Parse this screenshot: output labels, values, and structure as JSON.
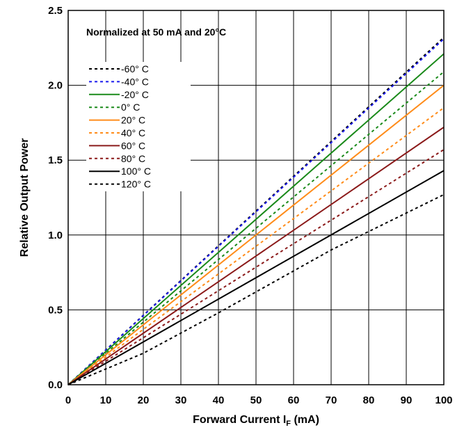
{
  "chart_data": {
    "type": "line",
    "xlabel": "Forward Current I",
    "xlabel_sub": "F",
    "xlabel_unit": " (mA)",
    "ylabel": "Relative Output Power",
    "annotation": "Normalized at 50 mA and 20°C",
    "xlim": [
      0,
      100
    ],
    "ylim": [
      0,
      2.5
    ],
    "x_ticks": [
      "0",
      "10",
      "20",
      "30",
      "40",
      "50",
      "60",
      "70",
      "80",
      "90",
      "100"
    ],
    "y_ticks": [
      "0.0",
      "0.5",
      "1.0",
      "1.5",
      "2.0",
      "2.5"
    ],
    "grid": "vertical every 10 mA, horizontal every 0.5",
    "legend_position": "top-left",
    "series": [
      {
        "name": "-60° C",
        "color": "#000000",
        "dash": true,
        "x": [
          0,
          100
        ],
        "y": [
          0.0,
          2.32
        ]
      },
      {
        "name": "-40° C",
        "color": "#1a1aee",
        "dash": true,
        "x": [
          0,
          100
        ],
        "y": [
          0.0,
          2.31
        ]
      },
      {
        "name": "-20° C",
        "color": "#1a8a1a",
        "dash": false,
        "x": [
          0,
          100
        ],
        "y": [
          0.0,
          2.21
        ]
      },
      {
        "name": "0° C",
        "color": "#1a8a1a",
        "dash": true,
        "x": [
          0,
          100
        ],
        "y": [
          0.0,
          2.09
        ]
      },
      {
        "name": "20° C",
        "color": "#ff8c1a",
        "dash": false,
        "x": [
          0,
          100
        ],
        "y": [
          0.0,
          2.0
        ]
      },
      {
        "name": "40° C",
        "color": "#ff8c1a",
        "dash": true,
        "x": [
          0,
          100
        ],
        "y": [
          0.0,
          1.85
        ]
      },
      {
        "name": "60° C",
        "color": "#8b1a1a",
        "dash": false,
        "x": [
          0,
          100
        ],
        "y": [
          0.0,
          1.72
        ]
      },
      {
        "name": "80° C",
        "color": "#8b1a1a",
        "dash": true,
        "x": [
          0,
          100
        ],
        "y": [
          0.0,
          1.57
        ]
      },
      {
        "name": "100° C",
        "color": "#000000",
        "dash": false,
        "x": [
          0,
          100
        ],
        "y": [
          0.0,
          1.43
        ]
      },
      {
        "name": "120° C",
        "color": "#000000",
        "dash": true,
        "x": [
          0,
          20,
          40,
          70,
          100
        ],
        "y": [
          0.0,
          0.21,
          0.48,
          0.9,
          1.27
        ]
      }
    ]
  }
}
